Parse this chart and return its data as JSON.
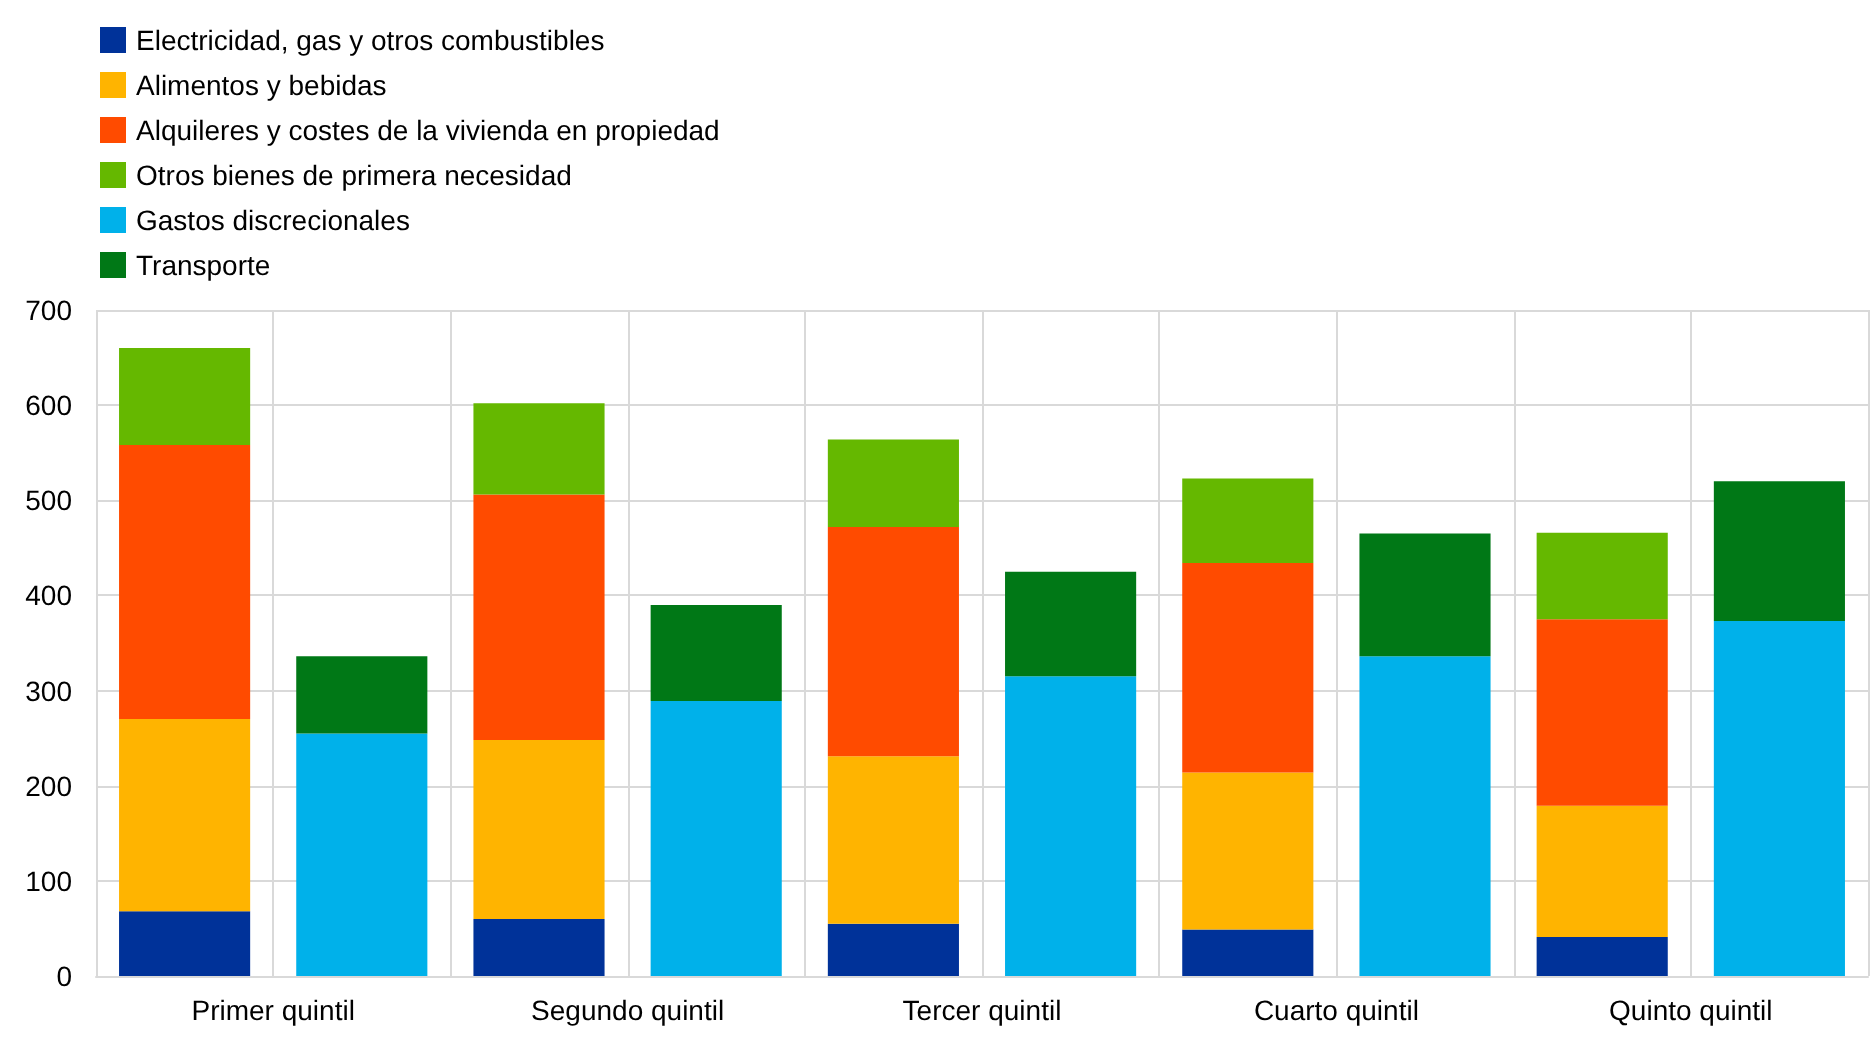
{
  "chart_data": {
    "type": "bar",
    "stacked": true,
    "categories": [
      "Primer quintil",
      null,
      "Segundo quintil",
      null,
      "Tercer quintil",
      null,
      "Cuarto quintil",
      null,
      "Quinto quintil",
      null
    ],
    "series": [
      {
        "name": "Electricidad, gas y otros combustibles",
        "color": "#003299",
        "values": [
          68,
          null,
          60,
          null,
          55,
          null,
          49,
          null,
          41,
          null
        ]
      },
      {
        "name": "Alimentos y bebidas",
        "color": "#ffb400",
        "values": [
          202,
          null,
          188,
          null,
          176,
          null,
          165,
          null,
          138,
          null
        ]
      },
      {
        "name": "Alquileres y costes de la vivienda en propiedad",
        "color": "#ff4b00",
        "values": [
          288,
          null,
          258,
          null,
          241,
          null,
          220,
          null,
          196,
          null
        ]
      },
      {
        "name": "Otros bienes de primera necesidad",
        "color": "#65b800",
        "values": [
          102,
          null,
          96,
          null,
          92,
          null,
          89,
          null,
          91,
          null
        ]
      },
      {
        "name": "Gastos discrecionales",
        "color": "#00b1ea",
        "values": [
          null,
          255,
          null,
          289,
          null,
          315,
          null,
          336,
          null,
          373
        ]
      },
      {
        "name": "Transporte",
        "color": "#007816",
        "values": [
          null,
          81,
          null,
          101,
          null,
          110,
          null,
          129,
          null,
          147
        ]
      }
    ],
    "ylim": [
      0,
      700
    ],
    "yticks": [
      0,
      100,
      200,
      300,
      400,
      500,
      600,
      700
    ],
    "grid": true,
    "legend": "top left"
  }
}
